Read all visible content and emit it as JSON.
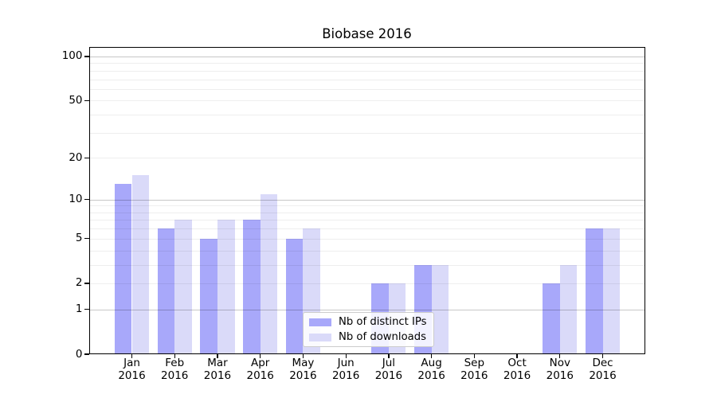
{
  "title": "Biobase 2016",
  "chart_data": {
    "type": "bar",
    "title": "Biobase 2016",
    "categories": [
      "Jan 2016",
      "Feb 2016",
      "Mar 2016",
      "Apr 2016",
      "May 2016",
      "Jun 2016",
      "Jul 2016",
      "Aug 2016",
      "Sep 2016",
      "Oct 2016",
      "Nov 2016",
      "Dec 2016"
    ],
    "series": [
      {
        "name": "Nb of distinct IPs",
        "color": "#a8a8fa",
        "values": [
          13,
          6,
          5,
          7,
          5,
          0,
          2,
          3,
          0,
          0,
          2,
          6
        ]
      },
      {
        "name": "Nb of downloads",
        "color": "#dadaf9",
        "values": [
          15,
          7,
          7,
          11,
          6,
          0,
          2,
          3,
          0,
          0,
          3,
          6
        ]
      }
    ],
    "xlabel": "",
    "ylabel": "",
    "yscale": "log1p",
    "ylim": [
      0,
      116
    ],
    "ytick_values": [
      0,
      1,
      2,
      5,
      10,
      20,
      50,
      100
    ],
    "ytick_labels": [
      "0",
      "1",
      "2",
      "5",
      "10",
      "20",
      "50",
      "100"
    ],
    "major_gridlines": [
      1,
      10,
      100
    ],
    "minor_gridlines": [
      2,
      3,
      4,
      5,
      6,
      7,
      8,
      9,
      20,
      30,
      40,
      50,
      60,
      70,
      80,
      90
    ],
    "grid": "horizontal",
    "legend_position": "inside lower center"
  },
  "legend": {
    "entries": [
      {
        "label": "Nb of distinct IPs",
        "swatch_color": "#a8a8fa"
      },
      {
        "label": "Nb of downloads",
        "swatch_color": "#dadaf9"
      }
    ]
  }
}
